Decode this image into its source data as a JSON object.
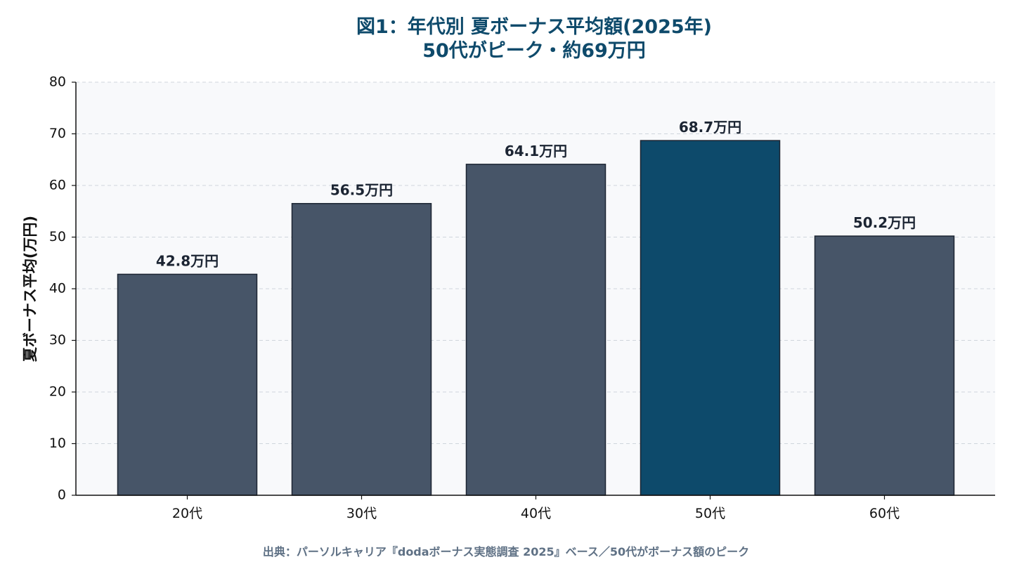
{
  "chart_data": {
    "type": "bar",
    "title_line1": "図1：年代別 夏ボーナス平均額(2025年)",
    "title_line2": "50代がピーク・約69万円",
    "ylabel": "夏ボーナス平均(万円)",
    "xlabel": "",
    "categories": [
      "20代",
      "30代",
      "40代",
      "50代",
      "60代"
    ],
    "values": [
      42.8,
      56.5,
      64.1,
      68.7,
      50.2
    ],
    "data_labels": [
      "42.8万円",
      "56.5万円",
      "64.1万円",
      "68.7万円",
      "50.2万円"
    ],
    "highlight_index": 3,
    "ylim": [
      0,
      80
    ],
    "yticks": [
      0,
      10,
      20,
      30,
      40,
      50,
      60,
      70,
      80
    ],
    "grid": "horizontal dashed",
    "colors": {
      "bar": "#475568",
      "highlight": "#0d4a6b",
      "bar_edge": "#1c2533",
      "plot_bg": "#f8f9fb",
      "grid": "#cfd5dc",
      "title": "#0e4a6b"
    }
  },
  "source_note": "出典：パーソルキャリア『dodaボーナス実態調査 2025』ベース／50代がボーナス額のピーク"
}
